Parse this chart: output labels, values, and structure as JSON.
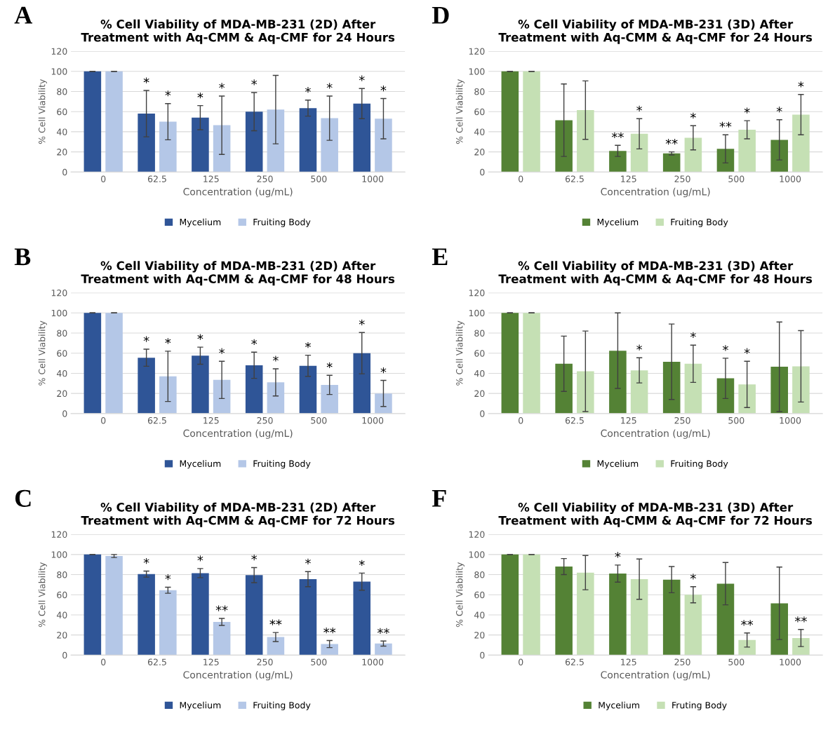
{
  "chart_data": [
    {
      "type": "bar",
      "title": "% Cell Viability of MDA-MB-231 (2D) After\nTreatment with Aq-CMM & Aq-CMF for 24 Hours",
      "annotations": [
        "A"
      ],
      "xlabel": "Concentration (ug/mL)",
      "ylabel": "% Cell Viability",
      "categories": [
        "0",
        "62.5",
        "125",
        "250",
        "500",
        "1000"
      ],
      "ylim": [
        0,
        120
      ],
      "yticks": [
        0,
        20,
        40,
        60,
        80,
        100,
        120
      ],
      "grid": "y",
      "legend": "bottom",
      "series": [
        {
          "name": "Mycelium",
          "color": "#2f5597",
          "values": [
            100,
            58,
            54,
            60,
            63.5,
            68
          ],
          "errors": [
            0,
            23,
            12,
            19,
            8,
            15
          ],
          "value_labels": [
            null,
            "*",
            "*",
            "*",
            "*",
            "*"
          ]
        },
        {
          "name": "Fruiting Body",
          "color": "#b4c7e7",
          "values": [
            100,
            50,
            46.5,
            62,
            53.5,
            53
          ],
          "errors": [
            0,
            18,
            29,
            34,
            22,
            20
          ],
          "value_labels": [
            null,
            "*",
            "*",
            null,
            "*",
            "*"
          ]
        }
      ]
    },
    {
      "type": "bar",
      "title": "% Cell Viability of MDA-MB-231 (2D) After\nTreatment with Aq-CMM & Aq-CMF for 48 Hours",
      "annotations": [
        "B"
      ],
      "xlabel": "Concentration (ug/mL)",
      "ylabel": "% Cell Viability",
      "categories": [
        "0",
        "62.5",
        "125",
        "250",
        "500",
        "1000"
      ],
      "ylim": [
        0,
        120
      ],
      "yticks": [
        0,
        20,
        40,
        60,
        80,
        100,
        120
      ],
      "grid": "y",
      "legend": "bottom",
      "series": [
        {
          "name": "Mycelium",
          "color": "#2f5597",
          "values": [
            100,
            55.5,
            57.5,
            48,
            47.5,
            60
          ],
          "errors": [
            0,
            8.5,
            8.5,
            13,
            10.5,
            20.5
          ],
          "value_labels": [
            null,
            "*",
            "*",
            "*",
            "*",
            "*"
          ]
        },
        {
          "name": "Fruiting Body",
          "color": "#b4c7e7",
          "values": [
            100,
            37,
            33.5,
            31,
            28.5,
            20
          ],
          "errors": [
            0,
            25,
            18.5,
            13.5,
            9.5,
            13
          ],
          "value_labels": [
            null,
            "*",
            "*",
            "*",
            "*",
            "*"
          ]
        }
      ]
    },
    {
      "type": "bar",
      "title": "% Cell Viability of MDA-MB-231 (2D) After\nTreatment with Aq-CMM & Aq-CMF for 72 Hours",
      "annotations": [
        "C"
      ],
      "xlabel": "Concentration (ug/mL)",
      "ylabel": "% Cell Viability",
      "categories": [
        "0",
        "62.5",
        "125",
        "250",
        "500",
        "1000"
      ],
      "ylim": [
        0,
        120
      ],
      "yticks": [
        0,
        20,
        40,
        60,
        80,
        100,
        120
      ],
      "grid": "y",
      "legend": "bottom",
      "series": [
        {
          "name": "Mycelium",
          "color": "#2f5597",
          "values": [
            100,
            80.5,
            81.5,
            79.5,
            75.5,
            73
          ],
          "errors": [
            0,
            3,
            4.5,
            7.5,
            7.5,
            8.5
          ],
          "value_labels": [
            null,
            "*",
            "*",
            "*",
            "*",
            "*"
          ]
        },
        {
          "name": "Fruiting Body",
          "color": "#b4c7e7",
          "values": [
            98.5,
            64.5,
            33,
            18,
            11,
            11.5
          ],
          "errors": [
            1.5,
            3,
            3.5,
            4.5,
            3.5,
            2.5
          ],
          "value_labels": [
            null,
            "*",
            "**",
            "**",
            "**",
            "**"
          ]
        }
      ]
    },
    {
      "type": "bar",
      "title": "% Cell Viability of MDA-MB-231 (3D) After\nTreatment with Aq-CMM & Aq-CMF for 24 Hours",
      "annotations": [
        "D"
      ],
      "xlabel": "Concentration (ug/mL)",
      "ylabel": "% Cell Viability",
      "categories": [
        "0",
        "62.5",
        "125",
        "250",
        "500",
        "1000"
      ],
      "ylim": [
        0,
        120
      ],
      "yticks": [
        0,
        20,
        40,
        60,
        80,
        100,
        120
      ],
      "grid": "y",
      "legend": "bottom",
      "series": [
        {
          "name": "Mycelium",
          "color": "#548235",
          "values": [
            100,
            51.5,
            21,
            18.5,
            23,
            32
          ],
          "errors": [
            0,
            36,
            5.5,
            1.5,
            14,
            20
          ],
          "value_labels": [
            null,
            null,
            "**",
            "**",
            "**",
            "*"
          ]
        },
        {
          "name": "Fruiting Body",
          "color": "#c5e0b4",
          "values": [
            100,
            61.5,
            38,
            34,
            42,
            57
          ],
          "errors": [
            0,
            29,
            15,
            12,
            9,
            20
          ],
          "value_labels": [
            null,
            null,
            "*",
            "*",
            "*",
            "*"
          ]
        }
      ]
    },
    {
      "type": "bar",
      "title": "% Cell Viability of MDA-MB-231 (3D) After\nTreatment with Aq-CMM & Aq-CMF for 48 Hours",
      "annotations": [
        "E"
      ],
      "xlabel": "Concentration (ug/mL)",
      "ylabel": "% Cell Viability",
      "categories": [
        "0",
        "62.5",
        "125",
        "250",
        "500",
        "1000"
      ],
      "ylim": [
        0,
        120
      ],
      "yticks": [
        0,
        20,
        40,
        60,
        80,
        100,
        120
      ],
      "grid": "y",
      "legend": "bottom",
      "series": [
        {
          "name": "Mycelium",
          "color": "#548235",
          "values": [
            100,
            49.5,
            62.5,
            51.5,
            35,
            46.5
          ],
          "errors": [
            0,
            27.5,
            37.5,
            37.5,
            20,
            44.5
          ],
          "value_labels": [
            null,
            null,
            null,
            null,
            "*",
            null
          ]
        },
        {
          "name": "Fruiting Body",
          "color": "#c5e0b4",
          "values": [
            100,
            42,
            43,
            49.5,
            29,
            47
          ],
          "errors": [
            0,
            40,
            12.5,
            18.5,
            23,
            35.5
          ],
          "value_labels": [
            null,
            null,
            "*",
            "*",
            "*",
            null
          ]
        }
      ]
    },
    {
      "type": "bar",
      "title": "% Cell Viability of MDA-MB-231 (3D) After\nTreatment with Aq-CMM & Aq-CMF for 72 Hours",
      "annotations": [
        "F"
      ],
      "xlabel": "Concentration (ug/mL)",
      "ylabel": "% Cell Viability",
      "categories": [
        "0",
        "62.5",
        "125",
        "250",
        "500",
        "1000"
      ],
      "ylim": [
        0,
        120
      ],
      "yticks": [
        0,
        20,
        40,
        60,
        80,
        100,
        120
      ],
      "grid": "y",
      "legend": "bottom",
      "series": [
        {
          "name": "Mycelium",
          "color": "#548235",
          "values": [
            100,
            88,
            81,
            75,
            71,
            51.5
          ],
          "errors": [
            0,
            8,
            8.5,
            13,
            21,
            36
          ],
          "value_labels": [
            null,
            null,
            "*",
            null,
            null,
            null
          ]
        },
        {
          "name": "Fruting Body",
          "color": "#c5e0b4",
          "values": [
            100,
            82,
            75.5,
            60,
            15,
            17
          ],
          "errors": [
            0,
            17,
            20,
            8,
            7,
            8.5
          ],
          "value_labels": [
            null,
            null,
            null,
            "*",
            "**",
            "**"
          ]
        }
      ]
    }
  ]
}
